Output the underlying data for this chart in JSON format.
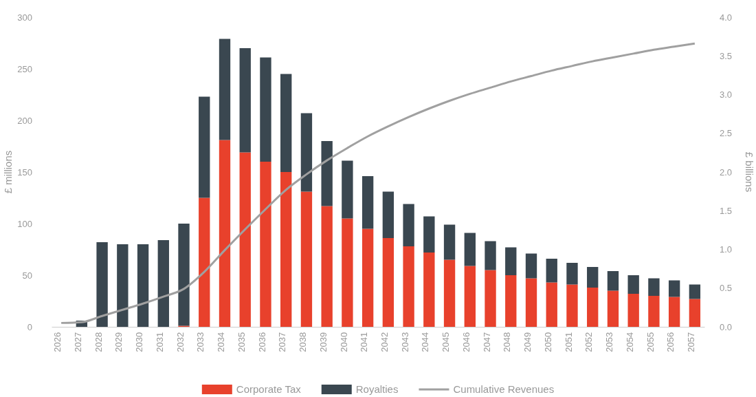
{
  "chart_data": {
    "type": "bar",
    "stacked": true,
    "ylabel": "£ millions",
    "y2label": "£ billions",
    "categories": [
      "2026",
      "2027",
      "2028",
      "2029",
      "2030",
      "2031",
      "2032",
      "2033",
      "2034",
      "2035",
      "2036",
      "2037",
      "2038",
      "2039",
      "2040",
      "2041",
      "2042",
      "2043",
      "2044",
      "2045",
      "2046",
      "2047",
      "2048",
      "2049",
      "2050",
      "2051",
      "2052",
      "2053",
      "2054",
      "2055",
      "2056",
      "2057"
    ],
    "series": [
      {
        "name": "Corporate Tax",
        "color": "#e8412c",
        "values": [
          0,
          0,
          0,
          0,
          0,
          0,
          1,
          125,
          181,
          169,
          160,
          150,
          131,
          117,
          105,
          95,
          86,
          78,
          72,
          65,
          59,
          55,
          50,
          47,
          43,
          41,
          38,
          35,
          32,
          30,
          29,
          27
        ]
      },
      {
        "name": "Royalties",
        "color": "#3a4750",
        "values": [
          0,
          6,
          82,
          80,
          80,
          84,
          99,
          98,
          98,
          101,
          101,
          95,
          76,
          63,
          56,
          51,
          45,
          41,
          35,
          34,
          32,
          28,
          27,
          24,
          23,
          21,
          20,
          19,
          18,
          17,
          16,
          14
        ]
      },
      {
        "name": "Cumulative Revenues",
        "type": "line",
        "axis": "y2",
        "color": "#a0a0a0",
        "values": [
          0.05,
          0.06,
          0.14,
          0.22,
          0.3,
          0.39,
          0.49,
          0.71,
          0.99,
          1.26,
          1.52,
          1.77,
          1.97,
          2.15,
          2.31,
          2.46,
          2.59,
          2.71,
          2.82,
          2.92,
          3.01,
          3.09,
          3.17,
          3.24,
          3.31,
          3.37,
          3.43,
          3.48,
          3.53,
          3.58,
          3.62,
          3.66
        ]
      }
    ],
    "ylim": [
      0,
      300
    ],
    "yticks": [
      0,
      50,
      100,
      150,
      200,
      250,
      300
    ],
    "y2lim": [
      0,
      4
    ],
    "y2ticks": [
      {
        "value": 0,
        "label": "0.0"
      },
      {
        "value": 0.5,
        "label": "0.5"
      },
      {
        "value": 1,
        "label": "1.0"
      },
      {
        "value": 1.5,
        "label": "1.5"
      },
      {
        "value": 2,
        "label": "2.0"
      },
      {
        "value": 2.5,
        "label": "2.5"
      },
      {
        "value": 3,
        "label": "3.0"
      },
      {
        "value": 3.5,
        "label": "3.5"
      },
      {
        "value": 4,
        "label": "4.0"
      }
    ],
    "grid": false,
    "legend": "bottom",
    "marker": "none",
    "line_style": "solid"
  }
}
